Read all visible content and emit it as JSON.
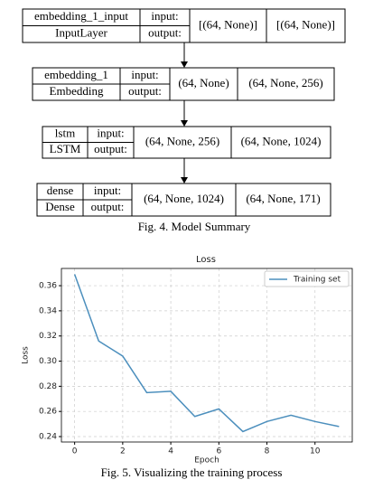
{
  "diagram": {
    "nodes": [
      {
        "name": "embedding_1_input",
        "class": "InputLayer",
        "input_label": "input:",
        "output_label": "output:",
        "input_shape": "[(64, None)]",
        "output_shape": "[(64, None)]"
      },
      {
        "name": "embedding_1",
        "class": "Embedding",
        "input_label": "input:",
        "output_label": "output:",
        "input_shape": "(64, None)",
        "output_shape": "(64, None, 256)"
      },
      {
        "name": "lstm",
        "class": "LSTM",
        "input_label": "input:",
        "output_label": "output:",
        "input_shape": "(64, None, 256)",
        "output_shape": "(64, None, 1024)"
      },
      {
        "name": "dense",
        "class": "Dense",
        "input_label": "input:",
        "output_label": "output:",
        "input_shape": "(64, None, 1024)",
        "output_shape": "(64, None, 171)"
      }
    ],
    "caption": "Fig. 4. Model Summary"
  },
  "chart_data": {
    "type": "line",
    "title": "Loss",
    "xlabel": "Epoch",
    "ylabel": "Loss",
    "x": [
      0,
      1,
      2,
      3,
      4,
      5,
      6,
      7,
      8,
      9,
      10,
      11
    ],
    "series": [
      {
        "name": "Training set",
        "color": "#4c8fbd",
        "values": [
          0.369,
          0.316,
          0.304,
          0.275,
          0.276,
          0.256,
          0.262,
          0.244,
          0.252,
          0.257,
          0.252,
          0.248
        ]
      }
    ],
    "xlim": [
      -0.55,
      11.55
    ],
    "ylim": [
      0.2357,
      0.3737
    ],
    "xticks": [
      0,
      2,
      4,
      6,
      8,
      10
    ],
    "yticks": [
      0.24,
      0.26,
      0.28,
      {
        "value": 0.3,
        "label": "0.30"
      },
      0.32,
      0.34,
      0.36
    ],
    "grid": true,
    "legend": "upper-right",
    "caption": "Fig. 5. Visualizing the training process"
  }
}
